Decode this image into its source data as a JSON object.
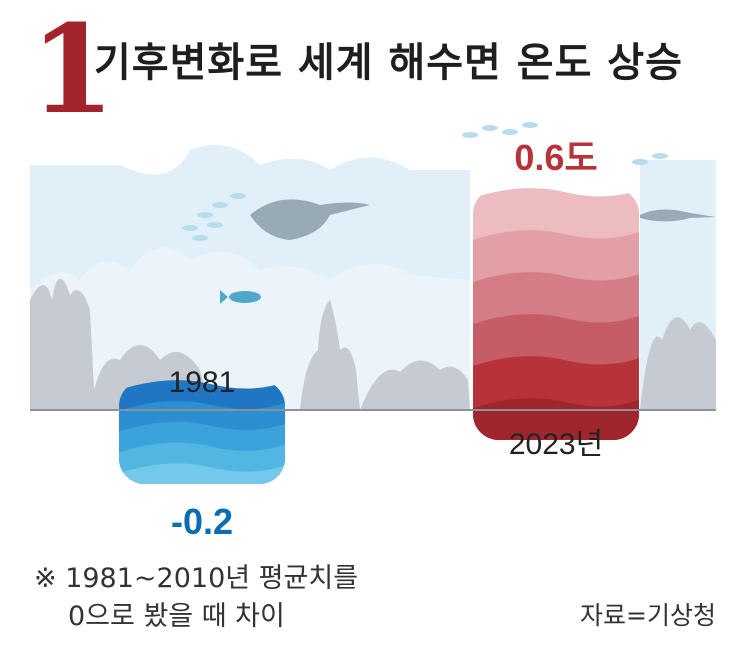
{
  "header": {
    "number": "1",
    "title": "기후변화로 세계 해수면 온도 상승"
  },
  "chart_data": {
    "type": "bar",
    "categories": [
      "1981",
      "2023년"
    ],
    "values": [
      -0.2,
      0.6
    ],
    "value_labels": [
      "-0.2",
      "0.6도"
    ],
    "colors": {
      "negative": "#1f77c4",
      "positive": "#b8323a",
      "negative_label": "#0b6bb3",
      "positive_label": "#b8323a",
      "baseline": "#8a9399",
      "scene": "#dceef7",
      "reef": "#c5cbd0"
    }
  },
  "footnote": {
    "line1": "※ 1981~2010년 평균치를",
    "line2": "0으로 봤을 때 차이"
  },
  "source": "자료=기상청"
}
